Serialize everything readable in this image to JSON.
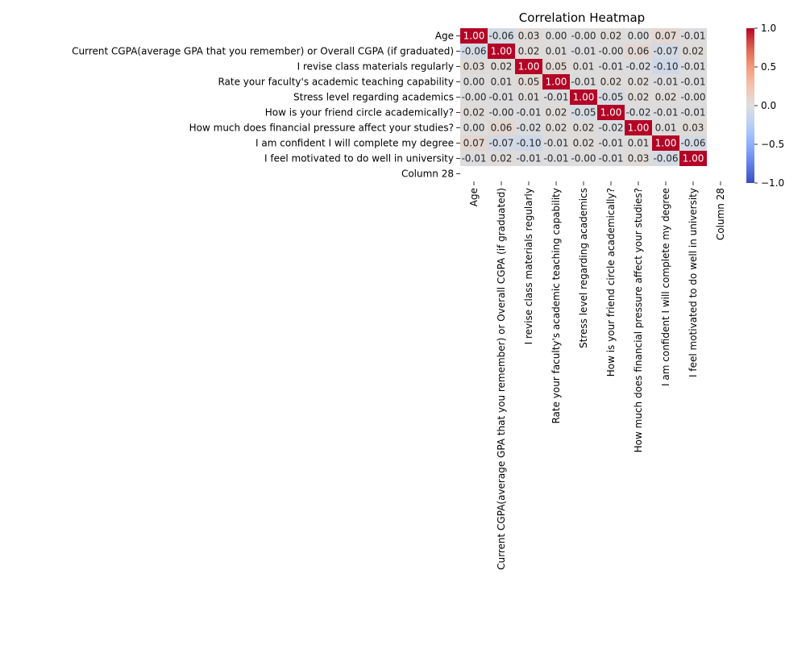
{
  "chart_data": {
    "type": "heatmap",
    "title": "Correlation Heatmap",
    "row_labels": [
      "Age",
      "Current CGPA(average GPA that you remember) or Overall CGPA (if graduated)",
      "I revise class materials regularly",
      "Rate your faculty's academic teaching capability",
      "Stress level regarding academics",
      "How is your friend circle academically?",
      "How much does financial pressure affect your studies?",
      "I am confident I will complete my degree",
      "I feel motivated to do well in university",
      "Column 28"
    ],
    "col_labels": [
      "Age",
      "Current CGPA(average GPA that you remember) or Overall CGPA (if graduated)",
      "I revise class materials regularly",
      "Rate your faculty's academic teaching capability",
      "Stress level regarding academics",
      "How is your friend circle academically?",
      "How much does financial pressure affect your studies?",
      "I am confident I will complete my degree",
      "I feel motivated to do well in university",
      "Column 28"
    ],
    "values": [
      [
        1.0,
        -0.06,
        0.03,
        0.0,
        -0.0,
        0.02,
        0.0,
        0.07,
        -0.01,
        null
      ],
      [
        -0.06,
        1.0,
        0.02,
        0.01,
        -0.01,
        -0.0,
        0.06,
        -0.07,
        0.02,
        null
      ],
      [
        0.03,
        0.02,
        1.0,
        0.05,
        0.01,
        -0.01,
        -0.02,
        -0.1,
        -0.01,
        null
      ],
      [
        0.0,
        0.01,
        0.05,
        1.0,
        -0.01,
        0.02,
        0.02,
        -0.01,
        -0.01,
        null
      ],
      [
        -0.0,
        -0.01,
        0.01,
        -0.01,
        1.0,
        -0.05,
        0.02,
        0.02,
        -0.0,
        null
      ],
      [
        0.02,
        -0.0,
        -0.01,
        0.02,
        -0.05,
        1.0,
        -0.02,
        -0.01,
        -0.01,
        null
      ],
      [
        0.0,
        0.06,
        -0.02,
        0.02,
        0.02,
        -0.02,
        1.0,
        0.01,
        0.03,
        null
      ],
      [
        0.07,
        -0.07,
        -0.1,
        -0.01,
        0.02,
        -0.01,
        0.01,
        1.0,
        -0.06,
        null
      ],
      [
        -0.01,
        0.02,
        -0.01,
        -0.01,
        -0.0,
        -0.01,
        0.03,
        -0.06,
        1.0,
        null
      ],
      [
        null,
        null,
        null,
        null,
        null,
        null,
        null,
        null,
        null,
        null
      ]
    ],
    "cell_labels": [
      [
        "1.00",
        "-0.06",
        "0.03",
        "0.00",
        "-0.00",
        "0.02",
        "0.00",
        "0.07",
        "-0.01",
        ""
      ],
      [
        "-0.06",
        "1.00",
        "0.02",
        "0.01",
        "-0.01",
        "-0.00",
        "0.06",
        "-0.07",
        "0.02",
        ""
      ],
      [
        "0.03",
        "0.02",
        "1.00",
        "0.05",
        "0.01",
        "-0.01",
        "-0.02",
        "-0.10",
        "-0.01",
        ""
      ],
      [
        "0.00",
        "0.01",
        "0.05",
        "1.00",
        "-0.01",
        "0.02",
        "0.02",
        "-0.01",
        "-0.01",
        ""
      ],
      [
        "-0.00",
        "-0.01",
        "0.01",
        "-0.01",
        "1.00",
        "-0.05",
        "0.02",
        "0.02",
        "-0.00",
        ""
      ],
      [
        "0.02",
        "-0.00",
        "-0.01",
        "0.02",
        "-0.05",
        "1.00",
        "-0.02",
        "-0.01",
        "-0.01",
        ""
      ],
      [
        "0.00",
        "0.06",
        "-0.02",
        "0.02",
        "0.02",
        "-0.02",
        "1.00",
        "0.01",
        "0.03",
        ""
      ],
      [
        "0.07",
        "-0.07",
        "-0.10",
        "-0.01",
        "0.02",
        "-0.01",
        "0.01",
        "1.00",
        "-0.06",
        ""
      ],
      [
        "-0.01",
        "0.02",
        "-0.01",
        "-0.01",
        "-0.00",
        "-0.01",
        "0.03",
        "-0.06",
        "1.00",
        ""
      ],
      [
        "",
        "",
        "",
        "",
        "",
        "",
        "",
        "",
        "",
        ""
      ]
    ],
    "colormap": "coolwarm",
    "vmin": -1.0,
    "vmax": 1.0,
    "colorbar_ticks": [
      1.0,
      0.5,
      0.0,
      -0.5,
      -1.0
    ],
    "colorbar_tick_labels": [
      "1.0",
      "0.5",
      "0.0",
      "−0.5",
      "−1.0"
    ]
  }
}
